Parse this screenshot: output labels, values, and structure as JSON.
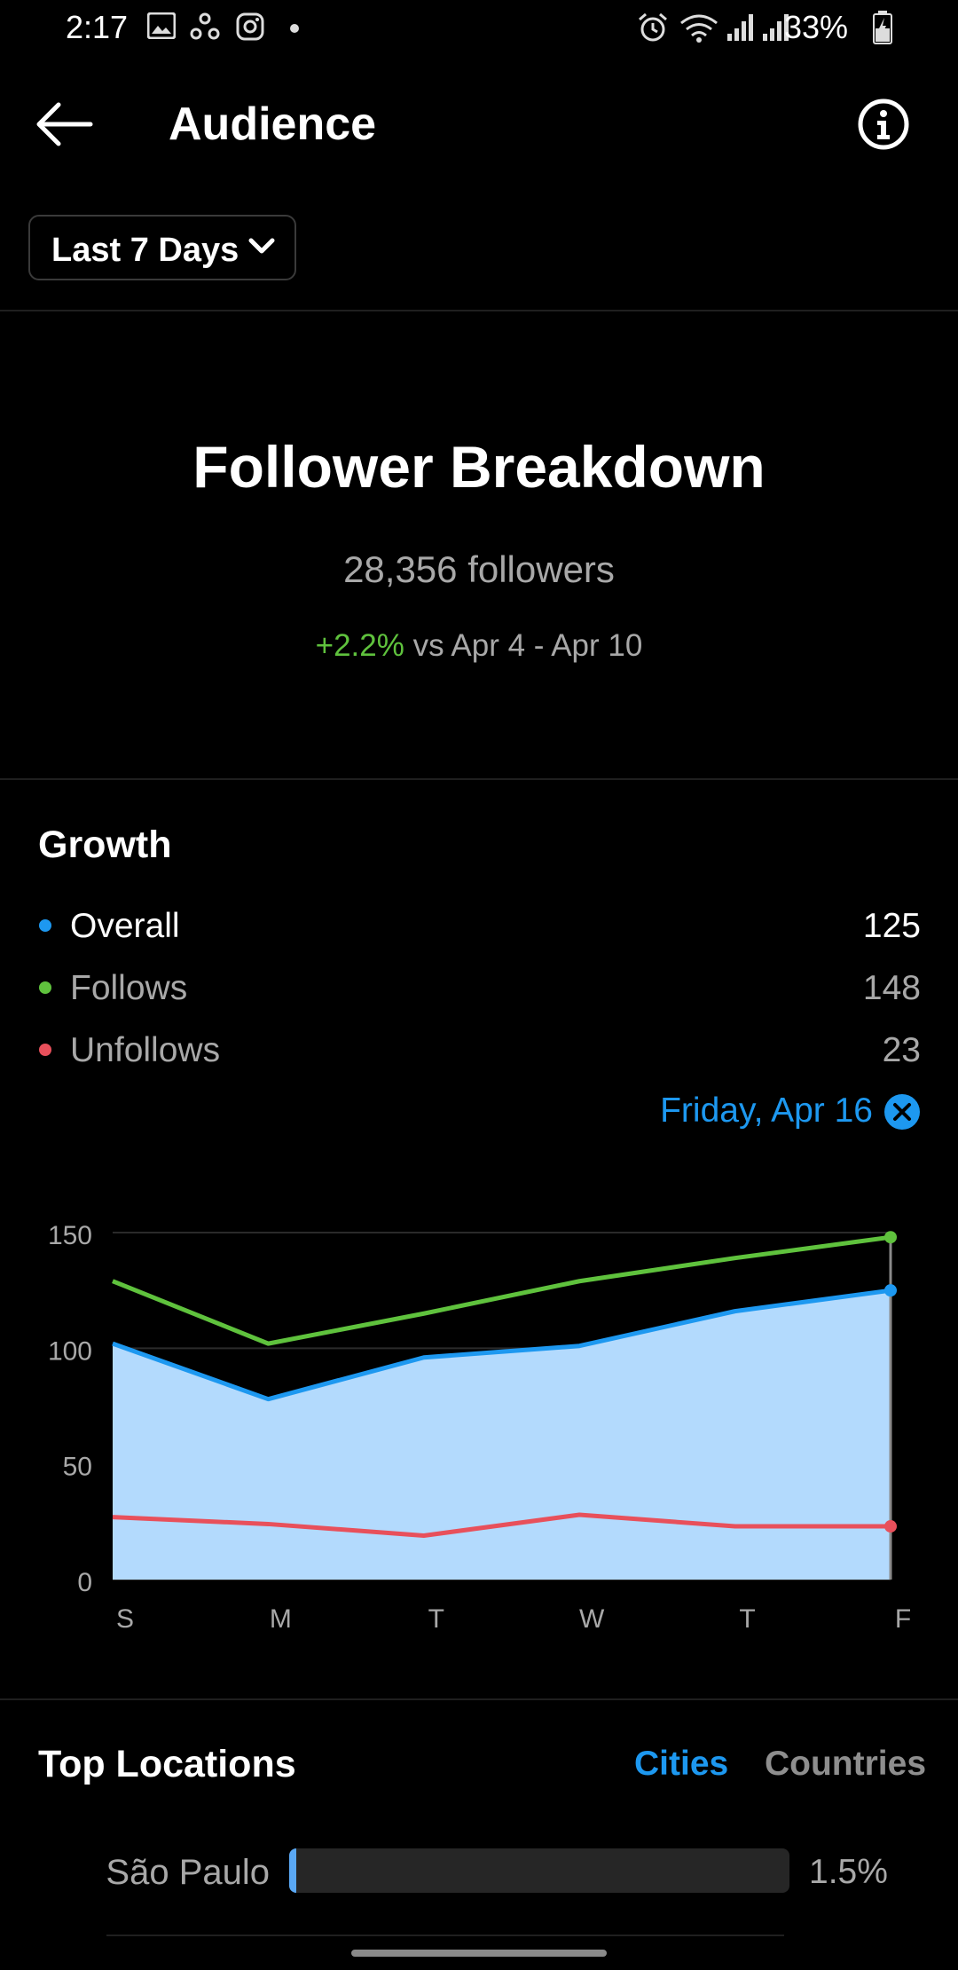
{
  "status_bar": {
    "time": "2:17",
    "battery": "33%",
    "left_icons": [
      "image-icon",
      "sync-icon",
      "instagram-icon",
      "dot-icon"
    ],
    "right_icons": [
      "alarm-icon",
      "wifi-icon",
      "signal-icon",
      "signal-icon",
      "battery-charging-icon"
    ]
  },
  "header": {
    "title": "Audience",
    "back_icon": "arrow-left-icon",
    "info_icon": "info-icon"
  },
  "filter": {
    "label": "Last 7 Days",
    "icon": "chevron-down-icon"
  },
  "follower_breakdown": {
    "title": "Follower Breakdown",
    "count": "28,356 followers",
    "change": "+2.2%",
    "compare": "vs Apr 4 - Apr 10"
  },
  "growth": {
    "title": "Growth",
    "legend": [
      {
        "name": "Overall",
        "value": "125",
        "color": "#1d98f0"
      },
      {
        "name": "Follows",
        "value": "148",
        "color": "#5fc23d"
      },
      {
        "name": "Unfollows",
        "value": "23",
        "color": "#e8505b"
      }
    ],
    "selected_date": "Friday, Apr 16",
    "close_icon": "close-circle-icon"
  },
  "chart_data": {
    "type": "area",
    "categories": [
      "S",
      "M",
      "T",
      "W",
      "T",
      "F"
    ],
    "yticks": [
      "0",
      "50",
      "100",
      "150"
    ],
    "ylim": [
      0,
      150
    ],
    "grid": true,
    "selected_index": 5,
    "series": [
      {
        "name": "Overall",
        "color": "#1d98f0",
        "fill": "#b3dafd",
        "values": [
          102,
          78,
          96,
          101,
          116,
          125
        ]
      },
      {
        "name": "Follows",
        "color": "#5fc23d",
        "values": [
          129,
          102,
          115,
          129,
          139,
          148
        ]
      },
      {
        "name": "Unfollows",
        "color": "#e8505b",
        "values": [
          27,
          24,
          19,
          28,
          23,
          23
        ]
      }
    ]
  },
  "top_locations": {
    "title": "Top Locations",
    "tabs": [
      {
        "label": "Cities",
        "active": true
      },
      {
        "label": "Countries",
        "active": false
      }
    ],
    "rows": [
      {
        "name": "São Paulo",
        "pct": "1.5%",
        "fraction": 0.015
      }
    ]
  },
  "colors": {
    "accent": "#1d98f0",
    "positive": "#5fc23d",
    "negative": "#e8505b",
    "background": "#000000"
  }
}
